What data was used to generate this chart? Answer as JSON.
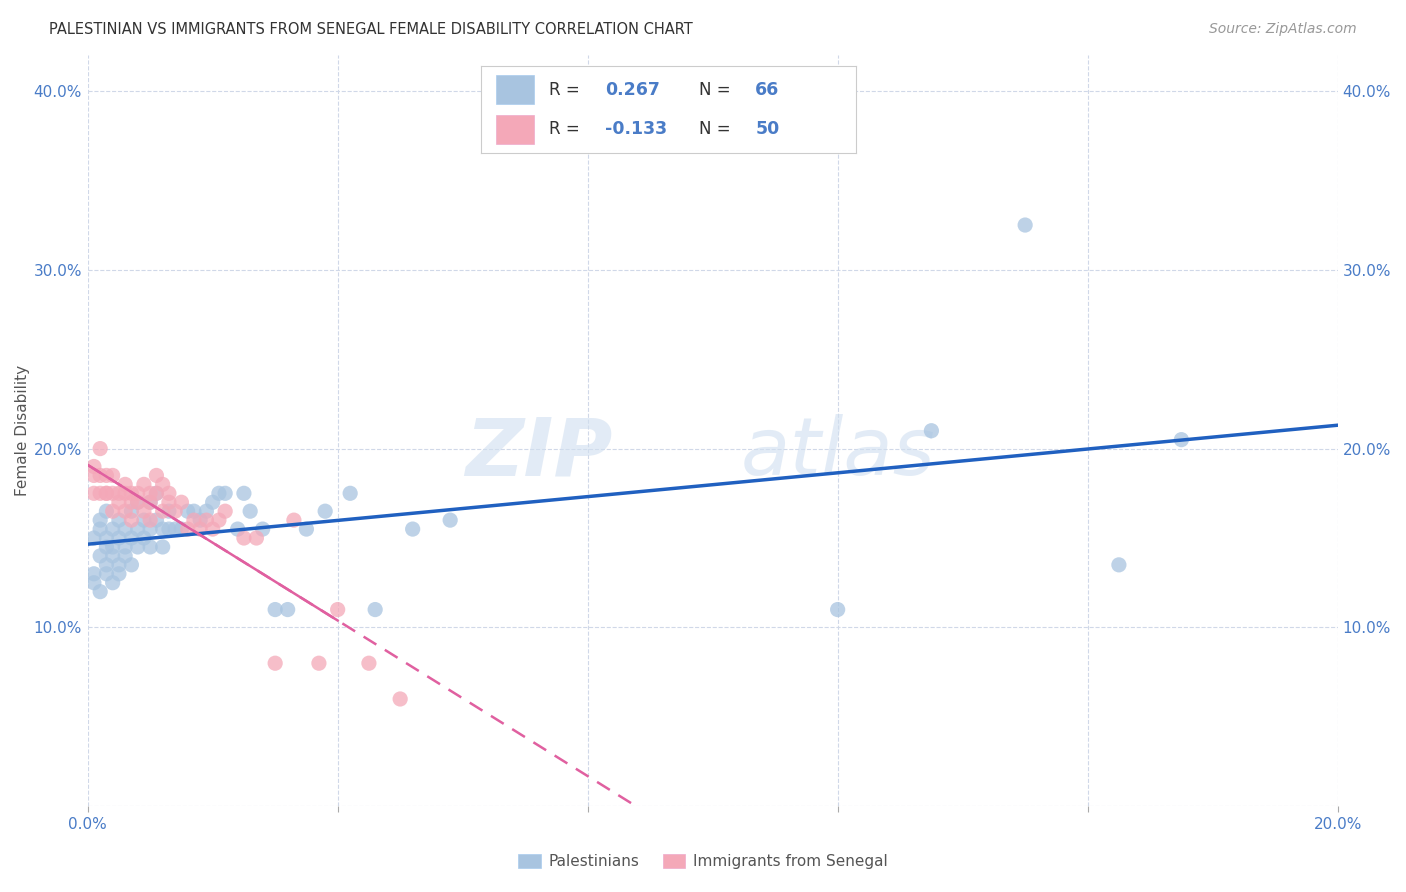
{
  "title": "PALESTINIAN VS IMMIGRANTS FROM SENEGAL FEMALE DISABILITY CORRELATION CHART",
  "source": "Source: ZipAtlas.com",
  "ylabel": "Female Disability",
  "xlim": [
    0.0,
    0.2
  ],
  "ylim": [
    0.0,
    0.42
  ],
  "xticks": [
    0.0,
    0.04,
    0.08,
    0.12,
    0.16,
    0.2
  ],
  "yticks": [
    0.0,
    0.1,
    0.2,
    0.3,
    0.4
  ],
  "R_pal": 0.267,
  "N_pal": 66,
  "R_sen": -0.133,
  "N_sen": 50,
  "color_pal": "#a8c4e0",
  "color_sen": "#f4a8b8",
  "line_color_pal": "#2060c0",
  "line_color_sen": "#e060a0",
  "watermark_zip": "ZIP",
  "watermark_atlas": "atlas",
  "background_color": "#ffffff",
  "grid_color": "#d0d8e8",
  "legend_labels": [
    "Palestinians",
    "Immigrants from Senegal"
  ],
  "palestinians_x": [
    0.001,
    0.001,
    0.001,
    0.002,
    0.002,
    0.002,
    0.002,
    0.003,
    0.003,
    0.003,
    0.003,
    0.003,
    0.004,
    0.004,
    0.004,
    0.004,
    0.005,
    0.005,
    0.005,
    0.005,
    0.006,
    0.006,
    0.006,
    0.007,
    0.007,
    0.007,
    0.008,
    0.008,
    0.008,
    0.009,
    0.009,
    0.01,
    0.01,
    0.01,
    0.011,
    0.011,
    0.012,
    0.012,
    0.013,
    0.013,
    0.014,
    0.015,
    0.016,
    0.017,
    0.018,
    0.019,
    0.02,
    0.021,
    0.022,
    0.024,
    0.025,
    0.026,
    0.028,
    0.03,
    0.032,
    0.035,
    0.038,
    0.042,
    0.046,
    0.052,
    0.058,
    0.12,
    0.135,
    0.15,
    0.165,
    0.175
  ],
  "palestinians_y": [
    0.13,
    0.15,
    0.125,
    0.14,
    0.155,
    0.12,
    0.16,
    0.135,
    0.15,
    0.145,
    0.13,
    0.165,
    0.14,
    0.155,
    0.125,
    0.145,
    0.15,
    0.135,
    0.16,
    0.13,
    0.145,
    0.155,
    0.14,
    0.15,
    0.165,
    0.135,
    0.155,
    0.145,
    0.17,
    0.15,
    0.16,
    0.17,
    0.155,
    0.145,
    0.16,
    0.175,
    0.155,
    0.145,
    0.165,
    0.155,
    0.155,
    0.155,
    0.165,
    0.165,
    0.16,
    0.165,
    0.17,
    0.175,
    0.175,
    0.155,
    0.175,
    0.165,
    0.155,
    0.11,
    0.11,
    0.155,
    0.165,
    0.175,
    0.11,
    0.155,
    0.16,
    0.11,
    0.21,
    0.325,
    0.135,
    0.205
  ],
  "senegal_x": [
    0.001,
    0.001,
    0.001,
    0.002,
    0.002,
    0.002,
    0.003,
    0.003,
    0.003,
    0.004,
    0.004,
    0.004,
    0.005,
    0.005,
    0.006,
    0.006,
    0.006,
    0.007,
    0.007,
    0.007,
    0.008,
    0.008,
    0.009,
    0.009,
    0.01,
    0.01,
    0.01,
    0.011,
    0.011,
    0.012,
    0.012,
    0.013,
    0.013,
    0.014,
    0.015,
    0.016,
    0.017,
    0.018,
    0.019,
    0.02,
    0.021,
    0.022,
    0.025,
    0.027,
    0.03,
    0.033,
    0.037,
    0.04,
    0.045,
    0.05
  ],
  "senegal_y": [
    0.19,
    0.175,
    0.185,
    0.175,
    0.185,
    0.2,
    0.175,
    0.185,
    0.175,
    0.165,
    0.175,
    0.185,
    0.17,
    0.175,
    0.175,
    0.165,
    0.18,
    0.17,
    0.175,
    0.16,
    0.17,
    0.175,
    0.165,
    0.18,
    0.17,
    0.16,
    0.175,
    0.175,
    0.185,
    0.165,
    0.18,
    0.17,
    0.175,
    0.165,
    0.17,
    0.155,
    0.16,
    0.155,
    0.16,
    0.155,
    0.16,
    0.165,
    0.15,
    0.15,
    0.08,
    0.16,
    0.08,
    0.11,
    0.08,
    0.06
  ]
}
